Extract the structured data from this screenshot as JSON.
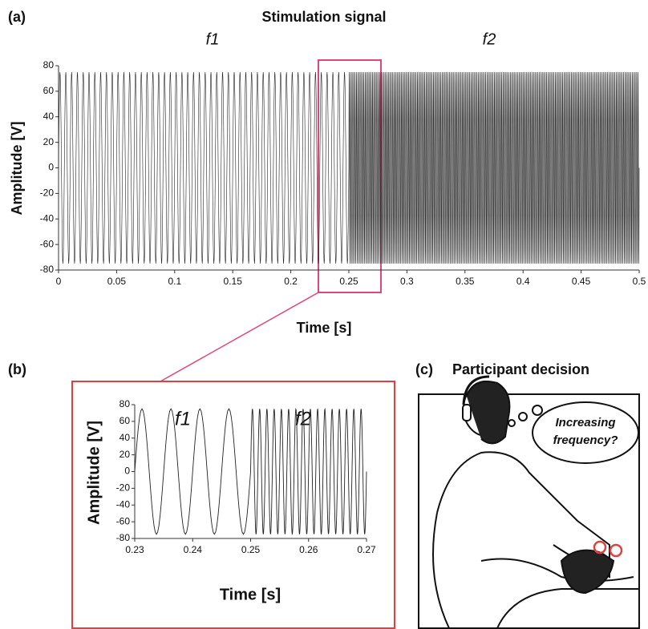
{
  "chart_data": [
    {
      "type": "line",
      "title": "Stimulation signal",
      "xlabel": "Time [s]",
      "ylabel": "Amplitude [V]",
      "series": [
        {
          "name": "f1",
          "color": "#222222",
          "start": 0,
          "end": 0.25,
          "frequency": 200,
          "amplitude": 75
        },
        {
          "name": "f2",
          "color": "#222222",
          "start": 0.25,
          "end": 0.5,
          "frequency": 800,
          "amplitude": 75
        }
      ],
      "xlim": [
        0,
        0.5
      ],
      "xticks": [
        0,
        0.05,
        0.1,
        0.15,
        0.2,
        0.25,
        0.3,
        0.35,
        0.4,
        0.45,
        0.5
      ],
      "ylim": [
        -80,
        80
      ],
      "yticks": [
        -80,
        -60,
        -40,
        -20,
        0,
        20,
        40,
        60,
        80
      ]
    },
    {
      "type": "line",
      "xlabel": "Time [s]",
      "ylabel": "Amplitude [V]",
      "series": [
        {
          "name": "f1",
          "color": "#222222",
          "start": 0.23,
          "end": 0.25,
          "frequency": 200,
          "amplitude": 75
        },
        {
          "name": "f2",
          "color": "#222222",
          "start": 0.25,
          "end": 0.27,
          "frequency": 800,
          "amplitude": 75
        }
      ],
      "xlim": [
        0.23,
        0.27
      ],
      "xticks": [
        0.23,
        0.24,
        0.25,
        0.26,
        0.27
      ],
      "ylim": [
        -80,
        80
      ],
      "yticks": [
        -80,
        -60,
        -40,
        -20,
        0,
        20,
        40,
        60,
        80
      ]
    }
  ],
  "panel_labels": [
    "(a)",
    "(b)",
    "(c)"
  ],
  "illustration": {
    "title": "Participant decision",
    "thought": [
      "Increasing",
      "frequency?"
    ]
  }
}
